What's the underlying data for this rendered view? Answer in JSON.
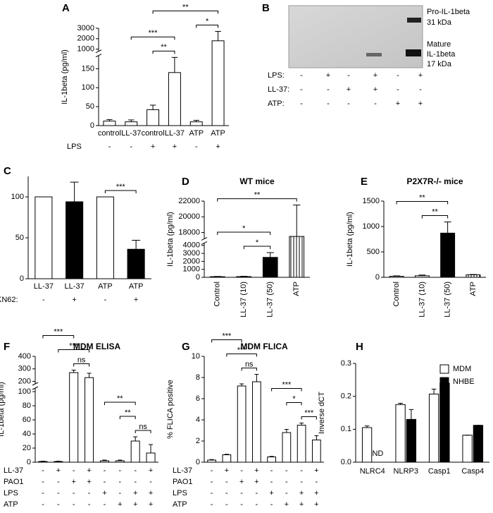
{
  "chart_data": [
    {
      "type": "bar",
      "label": "A",
      "ylabel": "IL-1beta (pg/ml)",
      "categories": [
        "control",
        "LL-37",
        "control",
        "LL-37",
        "ATP",
        "ATP"
      ],
      "series": [
        {
          "color": "#ffffff",
          "values": [
            12,
            10,
            42,
            140,
            10,
            1800
          ],
          "errors": [
            4,
            5,
            12,
            40,
            4,
            900
          ]
        }
      ],
      "ylim": [
        0,
        3000
      ],
      "axis_break": [
        185,
        800
      ],
      "yticks": [
        0,
        50,
        100,
        150,
        1000,
        2000,
        3000
      ],
      "conditions": [
        {
          "label": "LPS",
          "marks": [
            "-",
            "-",
            "+",
            "+",
            "-",
            "+"
          ]
        }
      ],
      "annotations": [
        {
          "text": "**",
          "from": 2,
          "to": 5
        },
        {
          "text": "*",
          "from": 4,
          "to": 5
        },
        {
          "text": "***",
          "from": 1,
          "to": 3
        },
        {
          "text": "**",
          "from": 2,
          "to": 3
        }
      ]
    },
    {
      "type": "bar",
      "label": "C",
      "ylabel": "% IL-1beta induction",
      "categories": [
        "LL-37",
        "LL-37",
        "ATP",
        "ATP"
      ],
      "series": [
        {
          "colors": [
            "#ffffff",
            "#000000",
            "#ffffff",
            "#000000"
          ],
          "values": [
            100,
            94,
            100,
            36
          ],
          "errors": [
            0,
            24,
            0,
            11
          ]
        }
      ],
      "ylim": [
        0,
        125
      ],
      "yticks": [
        0,
        50,
        100
      ],
      "conditions": [
        {
          "label": "KN62:",
          "marks": [
            "-",
            "+",
            "-",
            "+"
          ]
        }
      ],
      "annotations": [
        {
          "text": "***",
          "from": 2,
          "to": 3
        }
      ]
    },
    {
      "type": "bar",
      "label": "D",
      "title": "WT mice",
      "ylabel": "IL-1beta (pg/ml)",
      "categories": [
        "Control",
        "LL-37 (10)",
        "LL-37 (50)",
        "ATP"
      ],
      "rotate_labels": true,
      "series": [
        {
          "colors": [
            "#ffffff",
            "#ffffff",
            "#000000",
            "#ffffff"
          ],
          "hatched": [
            false,
            false,
            false,
            true
          ],
          "values": [
            80,
            90,
            2500,
            17500
          ],
          "errors": [
            30,
            40,
            600,
            4000
          ]
        }
      ],
      "ylim": [
        0,
        22000
      ],
      "axis_break": [
        4300,
        17200
      ],
      "yticks": [
        0,
        1000,
        2000,
        3000,
        4000,
        18000,
        20000,
        22000
      ],
      "annotations": [
        {
          "text": "**",
          "from": 0,
          "to": 3
        },
        {
          "text": "*",
          "from": 0,
          "to": 2
        },
        {
          "text": "*",
          "from": 1,
          "to": 2
        }
      ]
    },
    {
      "type": "bar",
      "label": "E",
      "title": "P2X7R-/- mice",
      "ylabel": "IL-1beta (pg/ml)",
      "categories": [
        "Control",
        "LL-37 (10)",
        "LL-37 (50)",
        "ATP"
      ],
      "rotate_labels": true,
      "series": [
        {
          "colors": [
            "#ffffff",
            "#ffffff",
            "#000000",
            "#ffffff"
          ],
          "hatched": [
            false,
            false,
            false,
            true
          ],
          "values": [
            20,
            30,
            870,
            50
          ],
          "errors": [
            8,
            15,
            220,
            6
          ]
        }
      ],
      "ylim": [
        0,
        1500
      ],
      "yticks": [
        0,
        500,
        1000,
        1500
      ],
      "annotations": [
        {
          "text": "**",
          "from": 0,
          "to": 2
        },
        {
          "text": "**",
          "from": 1,
          "to": 2
        }
      ]
    },
    {
      "type": "bar",
      "label": "F",
      "title": "MDM ELISA",
      "ylabel": "IL-1beta (pg/ml)",
      "series": [
        {
          "color": "#ffffff",
          "values": [
            1,
            1,
            270,
            230,
            2,
            2,
            30,
            13
          ],
          "errors": [
            0.5,
            0.5,
            20,
            35,
            1,
            1,
            6,
            12
          ]
        }
      ],
      "ylim": [
        0,
        400
      ],
      "axis_break": [
        105,
        180
      ],
      "yticks": [
        0,
        20,
        40,
        60,
        80,
        100,
        200,
        300,
        400
      ],
      "conditions": [
        {
          "label": "LL-37",
          "marks": [
            "-",
            "+",
            "-",
            "+",
            "-",
            "-",
            "-",
            "+"
          ]
        },
        {
          "label": "PAO1",
          "marks": [
            "-",
            "-",
            "+",
            "+",
            "-",
            "-",
            "-",
            "-"
          ]
        },
        {
          "label": "LPS",
          "marks": [
            "-",
            "-",
            "-",
            "-",
            "+",
            "-",
            "+",
            "+"
          ]
        },
        {
          "label": "ATP",
          "marks": [
            "-",
            "-",
            "-",
            "-",
            "-",
            "+",
            "+",
            "+"
          ]
        }
      ],
      "annotations": [
        {
          "text": "***",
          "from": 1,
          "to": 3
        },
        {
          "text": "***",
          "from": 0,
          "to": 2
        },
        {
          "text": "ns",
          "from": 2,
          "to": 3
        },
        {
          "text": "ns",
          "from": 6,
          "to": 7
        },
        {
          "text": "**",
          "from": 5,
          "to": 6
        },
        {
          "text": "**",
          "from": 4,
          "to": 6
        }
      ]
    },
    {
      "type": "bar",
      "label": "G",
      "title": "MDM FLICA",
      "ylabel": "% FLICA positive",
      "series": [
        {
          "color": "#ffffff",
          "values": [
            0.2,
            0.7,
            7.2,
            7.6,
            0.5,
            2.8,
            3.5,
            2.1
          ],
          "errors": [
            0.05,
            0.05,
            0.2,
            0.7,
            0.05,
            0.3,
            0.2,
            0.4
          ]
        }
      ],
      "ylim": [
        0,
        10
      ],
      "yticks": [
        0,
        2,
        4,
        6,
        8,
        10
      ],
      "conditions": [
        {
          "label": "LL-37",
          "marks": [
            "-",
            "+",
            "-",
            "+",
            "-",
            "-",
            "-",
            "+"
          ]
        },
        {
          "label": "PAO1",
          "marks": [
            "-",
            "-",
            "+",
            "+",
            "-",
            "-",
            "-",
            "-"
          ]
        },
        {
          "label": "LPS",
          "marks": [
            "-",
            "-",
            "-",
            "-",
            "+",
            "-",
            "+",
            "+"
          ]
        },
        {
          "label": "ATP",
          "marks": [
            "-",
            "-",
            "-",
            "-",
            "-",
            "+",
            "+",
            "+"
          ]
        }
      ],
      "annotations": [
        {
          "text": "***",
          "from": 1,
          "to": 3
        },
        {
          "text": "***",
          "from": 0,
          "to": 2
        },
        {
          "text": "ns",
          "from": 2,
          "to": 3
        },
        {
          "text": "***",
          "from": 6,
          "to": 7
        },
        {
          "text": "*",
          "from": 5,
          "to": 6
        },
        {
          "text": "***",
          "from": 4,
          "to": 6
        }
      ]
    },
    {
      "type": "grouped_bar",
      "label": "H",
      "ylabel": "Inverse dCT",
      "categories": [
        "NLRC4",
        "NLRP3",
        "Casp1",
        "Casp4"
      ],
      "series": [
        {
          "name": "MDM",
          "color": "#ffffff",
          "values": [
            0.105,
            0.175,
            0.207,
            0.082
          ],
          "errors": [
            0.005,
            0.004,
            0.015,
            0
          ]
        },
        {
          "name": "NHBE",
          "color": "#000000",
          "values": [
            null,
            0.13,
            0.24,
            0.112
          ],
          "errors": [
            null,
            0.03,
            0.008,
            0
          ]
        }
      ],
      "ylim": [
        0,
        0.3
      ],
      "yticks": [
        {
          "value": 0,
          "label": "0.0"
        },
        0.1,
        0.2,
        0.3
      ],
      "text_labels": [
        {
          "text": "ND",
          "category": 0,
          "series": 1
        }
      ],
      "legend": "top-right"
    }
  ],
  "blot": {
    "label": "B",
    "band_labels": [
      "Pro-IL-1beta",
      "31 kDa",
      "Mature",
      "IL-1beta",
      "17 kDa"
    ],
    "conditions": [
      {
        "label": "LPS:",
        "marks": [
          "-",
          "+",
          "-",
          "+",
          "-",
          "+"
        ]
      },
      {
        "label": "LL-37:",
        "marks": [
          "-",
          "-",
          "+",
          "+",
          "-",
          "-"
        ]
      },
      {
        "label": "ATP:",
        "marks": [
          "-",
          "-",
          "-",
          "-",
          "+",
          "+"
        ]
      }
    ]
  }
}
